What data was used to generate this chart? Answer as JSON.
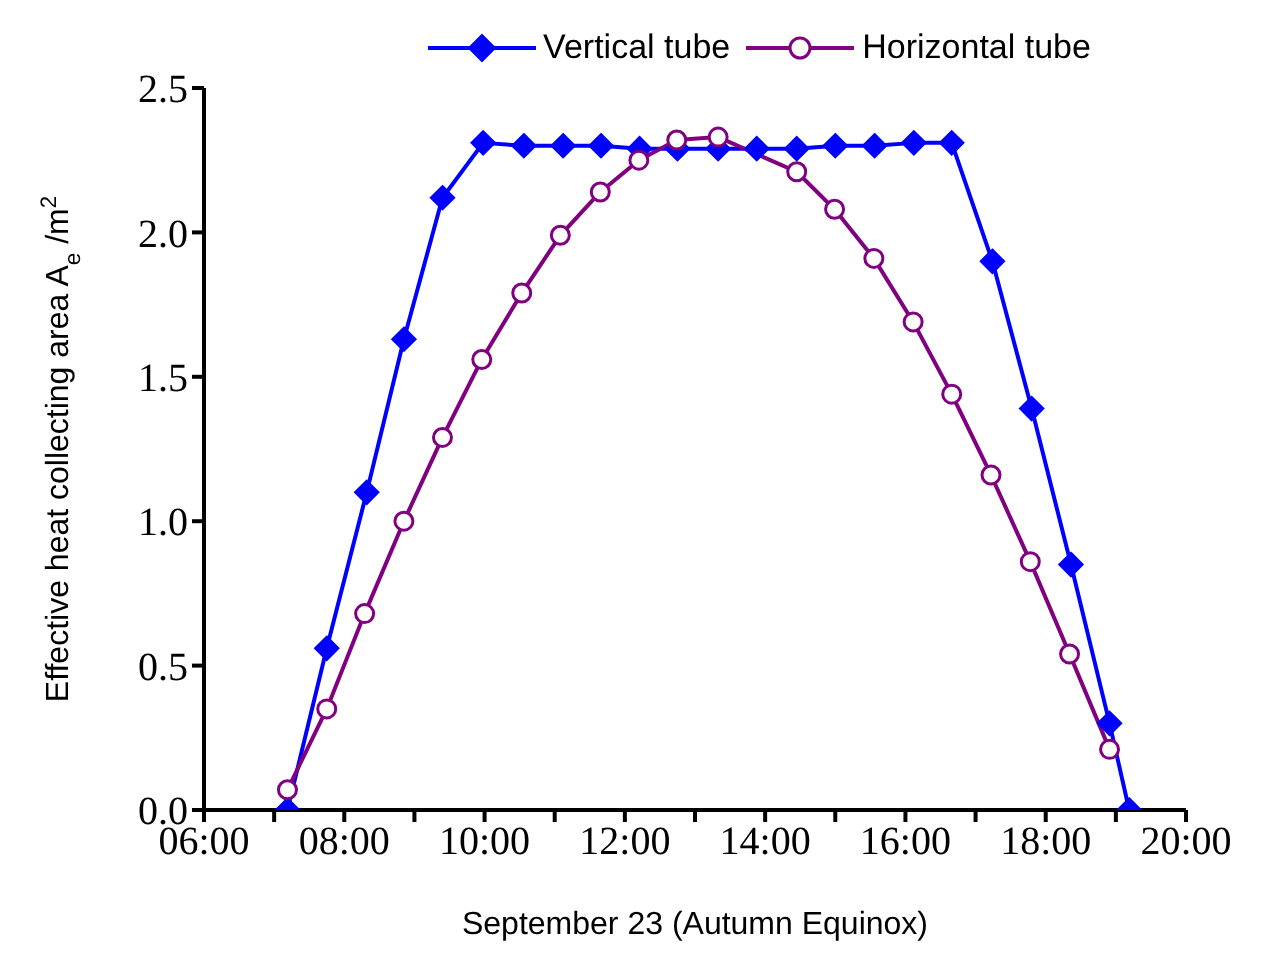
{
  "chart_data": {
    "type": "line",
    "xlabel": "September 23 (Autumn Equinox)",
    "ylabel": "Effective heat collecting area A$_{e}$ /m$^{2}$",
    "series": [
      {
        "name": "Vertical tube",
        "color": "#0000ff",
        "marker": "diamond",
        "x": [
          7.19,
          7.75,
          8.32,
          8.85,
          9.4,
          9.98,
          10.56,
          11.12,
          11.66,
          12.21,
          12.75,
          13.33,
          13.88,
          14.45,
          15.0,
          15.56,
          16.12,
          16.66,
          17.24,
          17.8,
          18.36,
          18.91,
          19.19
        ],
        "values": [
          0,
          0.56,
          1.1,
          1.63,
          2.12,
          2.31,
          2.3,
          2.3,
          2.3,
          2.29,
          2.29,
          2.29,
          2.29,
          2.29,
          2.3,
          2.3,
          2.31,
          2.31,
          1.9,
          1.39,
          0.85,
          0.3,
          0
        ]
      },
      {
        "name": "Horizontal tube",
        "color": "#800080",
        "marker": "circle",
        "x": [
          7.19,
          7.75,
          8.29,
          8.85,
          9.4,
          9.96,
          10.53,
          11.08,
          11.65,
          12.2,
          12.74,
          13.33,
          14.45,
          14.99,
          15.55,
          16.11,
          16.66,
          17.22,
          17.78,
          18.34,
          18.91
        ],
        "values": [
          0.07,
          0.35,
          0.68,
          1.0,
          1.29,
          1.56,
          1.79,
          1.99,
          2.14,
          2.25,
          2.32,
          2.33,
          2.21,
          2.08,
          1.91,
          1.69,
          1.44,
          1.16,
          0.86,
          0.54,
          0.21
        ]
      }
    ],
    "xlim": [
      6,
      20
    ],
    "xticks": [
      {
        "value": 6,
        "label": "06:00"
      },
      {
        "value": 7,
        "label": null
      },
      {
        "value": 8,
        "label": "08:00"
      },
      {
        "value": 9,
        "label": null
      },
      {
        "value": 10,
        "label": "10:00"
      },
      {
        "value": 11,
        "label": null
      },
      {
        "value": 12,
        "label": "12:00"
      },
      {
        "value": 13,
        "label": null
      },
      {
        "value": 14,
        "label": "14:00"
      },
      {
        "value": 15,
        "label": null
      },
      {
        "value": 16,
        "label": "16:00"
      },
      {
        "value": 17,
        "label": null
      },
      {
        "value": 18,
        "label": "18:00"
      },
      {
        "value": 19,
        "label": null
      },
      {
        "value": 20,
        "label": "20:00"
      }
    ],
    "ylim": [
      0,
      2.5
    ],
    "yticks": [
      {
        "value": 0,
        "label": "0.0"
      },
      {
        "value": 0.5,
        "label": "0.5"
      },
      {
        "value": 1,
        "label": "1.0"
      },
      {
        "value": 1.5,
        "label": "1.5"
      },
      {
        "value": 2,
        "label": "2.0"
      },
      {
        "value": 2.5,
        "label": "2.5"
      }
    ],
    "grid": false,
    "legend": "top",
    "line_style": "solid"
  }
}
